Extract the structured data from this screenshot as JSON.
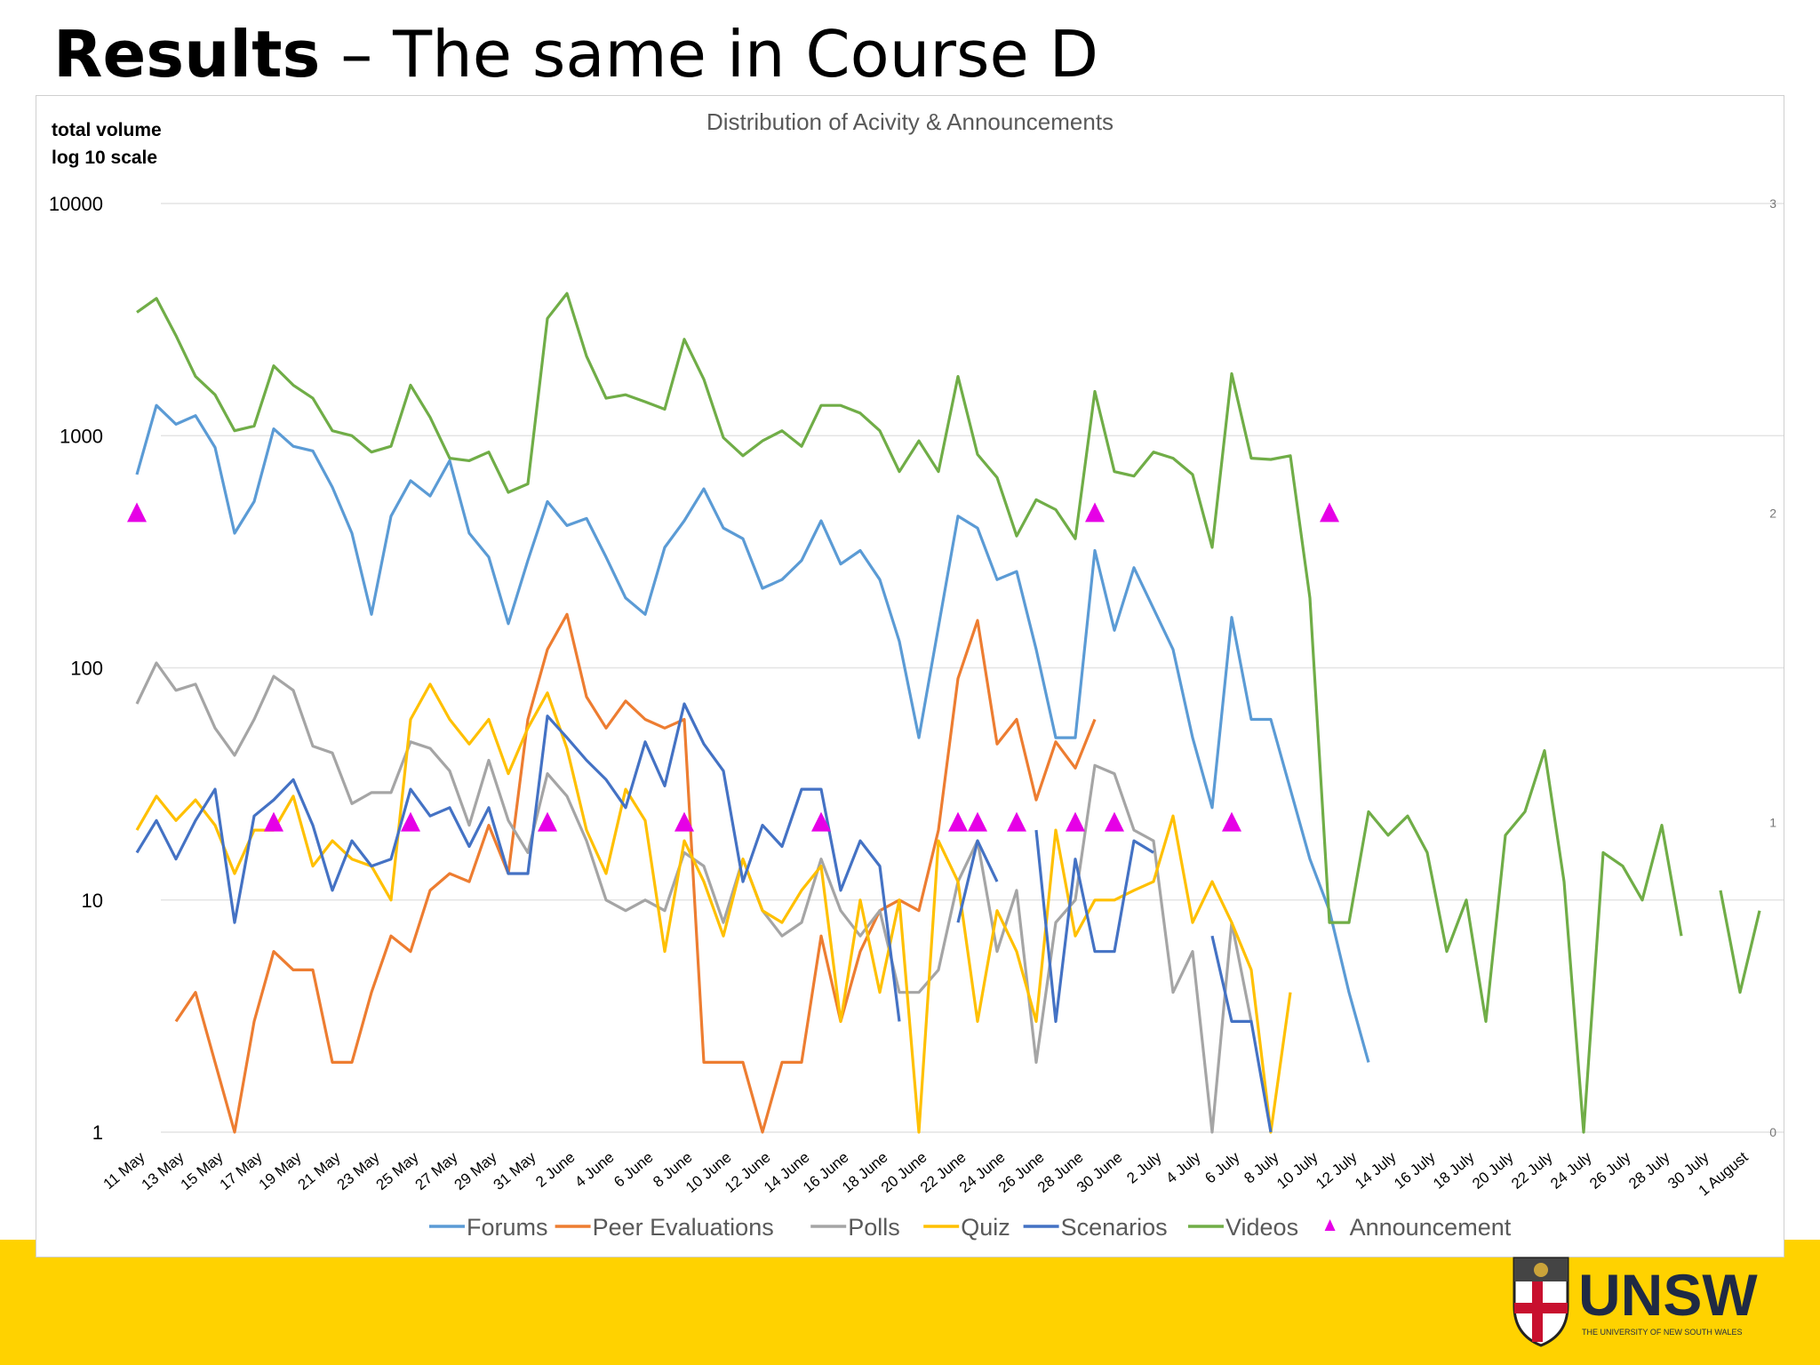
{
  "slide": {
    "title_bold": "Results",
    "title_rest": " – The same in Course D"
  },
  "logo": {
    "name": "UNSW",
    "subtitle": "THE UNIVERSITY OF NEW SOUTH WALES"
  },
  "colors": {
    "band": "#FFD200",
    "Forums": "#5B9BD5",
    "Peer Evaluations": "#ED7D31",
    "Polls": "#A5A5A5",
    "Quiz": "#FFC000",
    "Scenarios": "#4472C4",
    "Videos": "#70AD47",
    "Announcement": "#E600E6"
  },
  "chart_data": {
    "type": "line",
    "title": "Distribution of Acivity & Announcements",
    "ylabel": "total volume\nlog 10 scale",
    "yscale": "log",
    "ylim": [
      1,
      10000
    ],
    "y_ticks": [
      "1",
      "10",
      "100",
      "1000",
      "10000"
    ],
    "y2lim": [
      0,
      3
    ],
    "y2_ticks": [
      "0",
      "1",
      "2",
      "3"
    ],
    "grid": true,
    "legend_position": "bottom",
    "x_tick_labels": [
      "11 May",
      "13 May",
      "15 May",
      "17 May",
      "19 May",
      "21 May",
      "23 May",
      "25 May",
      "27 May",
      "29 May",
      "31 May",
      "2 June",
      "4 June",
      "6 June",
      "8 June",
      "10 June",
      "12 June",
      "14 June",
      "16 June",
      "18 June",
      "20 June",
      "22 June",
      "24 June",
      "26 June",
      "28 June",
      "30 June",
      "2 July",
      "4 July",
      "6 July",
      "8 July",
      "10 July",
      "12 July",
      "14 July",
      "16 July",
      "18 July",
      "20 July",
      "22 July",
      "24 July",
      "26 July",
      "28 July",
      "30 July",
      "1 August"
    ],
    "x_start": "11 May",
    "x_end": "3 August",
    "series": [
      {
        "name": "Forums",
        "values": [
          680,
          1350,
          1120,
          1220,
          890,
          380,
          520,
          1070,
          900,
          860,
          600,
          380,
          170,
          450,
          640,
          550,
          780,
          380,
          300,
          155,
          290,
          520,
          410,
          440,
          300,
          200,
          170,
          330,
          430,
          590,
          400,
          360,
          220,
          240,
          290,
          430,
          280,
          320,
          240,
          130,
          50,
          150,
          450,
          400,
          240,
          260,
          120,
          50,
          50,
          320,
          145,
          270,
          180,
          120,
          50,
          25,
          165,
          60,
          60,
          30,
          15,
          9,
          4,
          2
        ]
      },
      {
        "name": "Peer Evaluations",
        "values": [
          null,
          null,
          3,
          4,
          2,
          1,
          3,
          6,
          5,
          5,
          2,
          2,
          4,
          7,
          6,
          11,
          13,
          12,
          21,
          13,
          60,
          120,
          170,
          75,
          55,
          72,
          60,
          55,
          60,
          2,
          2,
          2,
          1,
          2,
          2,
          7,
          3,
          6,
          9,
          10,
          9,
          20,
          90,
          160,
          47,
          60,
          27,
          48,
          37,
          60
        ]
      },
      {
        "name": "Polls",
        "values": [
          70,
          105,
          80,
          85,
          55,
          42,
          60,
          92,
          80,
          46,
          43,
          26,
          29,
          29,
          48,
          45,
          36,
          21,
          40,
          22,
          16,
          35,
          28,
          18,
          10,
          9,
          10,
          9,
          16,
          14,
          8,
          15,
          9,
          7,
          8,
          15,
          9,
          7,
          9,
          4,
          4,
          5,
          12,
          18,
          6,
          11,
          2,
          8,
          10,
          38,
          35,
          20,
          18,
          4,
          6,
          1,
          8,
          3
        ]
      },
      {
        "name": "Quiz",
        "values": [
          20,
          28,
          22,
          27,
          21,
          13,
          20,
          20,
          28,
          14,
          18,
          15,
          14,
          10,
          60,
          85,
          60,
          47,
          60,
          35,
          55,
          78,
          45,
          20,
          13,
          30,
          22,
          6,
          18,
          12,
          7,
          15,
          9,
          8,
          11,
          14,
          3,
          10,
          4,
          10,
          1,
          18,
          12,
          3,
          9,
          6,
          3,
          20,
          7,
          10,
          10,
          11,
          12,
          23,
          8,
          12,
          8,
          5,
          1,
          4
        ]
      },
      {
        "name": "Scenarios",
        "values": [
          16,
          22,
          15,
          22,
          30,
          8,
          23,
          27,
          33,
          21,
          11,
          18,
          14,
          15,
          30,
          23,
          25,
          17,
          25,
          13,
          13,
          62,
          50,
          40,
          33,
          25,
          48,
          31,
          70,
          47,
          36,
          12,
          21,
          17,
          30,
          30,
          11,
          18,
          14,
          3,
          null,
          null,
          8,
          18,
          12,
          null,
          20,
          3,
          15,
          6,
          6,
          18,
          16,
          null,
          null,
          7,
          3,
          3,
          1
        ]
      },
      {
        "name": "Videos",
        "values": [
          3400,
          3900,
          2700,
          1800,
          1500,
          1050,
          1100,
          2000,
          1650,
          1450,
          1050,
          1000,
          850,
          900,
          1650,
          1200,
          800,
          780,
          850,
          570,
          620,
          3200,
          4100,
          2200,
          1450,
          1500,
          1400,
          1300,
          2600,
          1750,
          980,
          820,
          950,
          1050,
          900,
          1350,
          1350,
          1250,
          1050,
          700,
          950,
          700,
          1800,
          830,
          660,
          370,
          530,
          480,
          360,
          1550,
          700,
          670,
          850,
          800,
          680,
          330,
          1850,
          800,
          790,
          820,
          200,
          8,
          8,
          24,
          19,
          23,
          16,
          6,
          10,
          3,
          19,
          24,
          44,
          12,
          1,
          16,
          14,
          10,
          21,
          7,
          null,
          11,
          4,
          9
        ]
      },
      {
        "name": "Announcement",
        "axis": "secondary",
        "points": [
          [
            0,
            2
          ],
          [
            7,
            1
          ],
          [
            14,
            1
          ],
          [
            21,
            1
          ],
          [
            28,
            1
          ],
          [
            35,
            1
          ],
          [
            42,
            1
          ],
          [
            43,
            1
          ],
          [
            45,
            1
          ],
          [
            48,
            1
          ],
          [
            49,
            2
          ],
          [
            50,
            1
          ],
          [
            56,
            1
          ],
          [
            61,
            2
          ]
        ]
      }
    ]
  }
}
